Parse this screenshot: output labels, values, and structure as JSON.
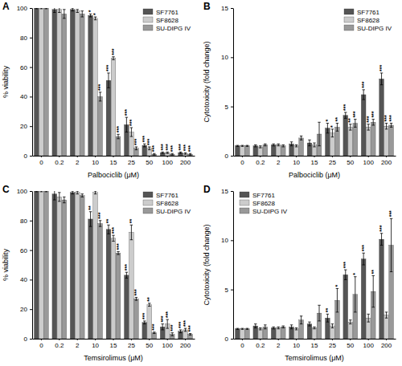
{
  "chart_data": [
    {
      "type": "bar",
      "title": "A",
      "x_label": "Palbociclib (μM)",
      "y_label": "% viability",
      "categories": [
        "0",
        "0.2",
        "2",
        "10",
        "15",
        "25",
        "50",
        "100",
        "200"
      ],
      "ylim": [
        0,
        100
      ],
      "yticks": [
        0,
        20,
        40,
        60,
        80,
        100
      ],
      "legend": "upper right",
      "series": [
        {
          "name": "SF7761",
          "color": "#555555",
          "values": [
            100,
            99,
            99,
            95,
            51,
            21,
            7,
            2,
            2
          ],
          "errors": [
            0.5,
            2,
            1,
            1,
            5,
            5,
            1,
            0.5,
            0.5
          ],
          "significance": [
            null,
            null,
            null,
            "*",
            "***",
            "***",
            "***",
            "***",
            "***"
          ]
        },
        {
          "name": "SF8628",
          "color": "#cccccc",
          "values": [
            100,
            99,
            98,
            93,
            66,
            16,
            5,
            2,
            1.5
          ],
          "errors": [
            0.5,
            2,
            1,
            1,
            1,
            3,
            1,
            0.5,
            0.5
          ],
          "significance": [
            null,
            null,
            null,
            "*",
            "***",
            "***",
            "***",
            "***",
            "***"
          ]
        },
        {
          "name": "SU-DIPG IV",
          "color": "#999999",
          "values": [
            100,
            96,
            96,
            40,
            13,
            5,
            1,
            1,
            1
          ],
          "errors": [
            0.5,
            3,
            2,
            3,
            1.5,
            1,
            0.5,
            0.5,
            0.5
          ],
          "significance": [
            null,
            null,
            null,
            "***",
            "***",
            "***",
            "***",
            "***",
            "***"
          ]
        }
      ]
    },
    {
      "type": "bar",
      "title": "B",
      "x_label": "Palbociclib (μM)",
      "y_label": "Cytotoxicity (fold change)",
      "categories": [
        "0",
        "0.2",
        "2",
        "10",
        "15",
        "25",
        "50",
        "100",
        "200"
      ],
      "ylim": [
        0,
        15
      ],
      "yticks": [
        0,
        5,
        10,
        15
      ],
      "legend": "upper right",
      "series": [
        {
          "name": "SF7761",
          "color": "#555555",
          "values": [
            1,
            1.0,
            1.1,
            1.2,
            1.3,
            2.8,
            4.1,
            6.2,
            7.8
          ],
          "errors": [
            0.05,
            0.1,
            0.1,
            0.2,
            0.3,
            0.5,
            0.3,
            0.5,
            0.6
          ],
          "significance": [
            null,
            null,
            null,
            null,
            null,
            "*",
            "***",
            "***",
            "***"
          ]
        },
        {
          "name": "SF8628",
          "color": "#cccccc",
          "values": [
            1,
            0.9,
            1.1,
            1.0,
            1.1,
            2.3,
            2.9,
            2.9,
            3.0
          ],
          "errors": [
            0.05,
            0.1,
            0.1,
            0.1,
            0.2,
            0.4,
            0.3,
            0.3,
            0.3
          ],
          "significance": [
            null,
            null,
            null,
            null,
            null,
            "*",
            "**",
            "***",
            "***"
          ]
        },
        {
          "name": "SU-DIPG IV",
          "color": "#999999",
          "values": [
            1,
            1.1,
            1.0,
            1.8,
            2.2,
            2.9,
            3.3,
            3.4,
            3.1
          ],
          "errors": [
            0.05,
            0.1,
            0.1,
            0.2,
            1.2,
            0.4,
            0.4,
            0.3,
            0.2
          ],
          "significance": [
            null,
            null,
            null,
            null,
            null,
            "**",
            "***",
            "***",
            "***"
          ]
        }
      ]
    },
    {
      "type": "bar",
      "title": "C",
      "x_label": "Temsirolimus (μM)",
      "y_label": "% viability",
      "categories": [
        "0",
        "0.2",
        "2",
        "10",
        "15",
        "25",
        "50",
        "100",
        "200"
      ],
      "ylim": [
        0,
        100
      ],
      "yticks": [
        0,
        20,
        40,
        60,
        80,
        100
      ],
      "legend": "upper right",
      "series": [
        {
          "name": "SF7761",
          "color": "#555555",
          "values": [
            100,
            98,
            99,
            81,
            74,
            43,
            11,
            8,
            5
          ],
          "errors": [
            0.5,
            4,
            1,
            5,
            3,
            2,
            1,
            2,
            1
          ],
          "significance": [
            null,
            null,
            null,
            "**",
            "**",
            "***",
            "***",
            "***",
            "***"
          ]
        },
        {
          "name": "SF8628",
          "color": "#cccccc",
          "values": [
            100,
            96,
            99,
            99,
            68,
            72,
            23,
            10,
            6
          ],
          "errors": [
            0.5,
            3,
            1,
            1,
            2,
            5,
            1,
            3,
            1
          ],
          "significance": [
            null,
            null,
            null,
            null,
            "***",
            "**",
            "**",
            "***",
            "***"
          ]
        },
        {
          "name": "SU-DIPG IV",
          "color": "#999999",
          "values": [
            100,
            94,
            97,
            78,
            58,
            27,
            4,
            3,
            3
          ],
          "errors": [
            0.5,
            2,
            1,
            2,
            1,
            1,
            0.5,
            1,
            0.5
          ],
          "significance": [
            null,
            null,
            null,
            "***",
            "***",
            "***",
            "***",
            "***",
            "***"
          ]
        }
      ]
    },
    {
      "type": "bar",
      "title": "D",
      "x_label": "Temsirolimus (μM)",
      "y_label": "Cytotoxicity (fold change)",
      "categories": [
        "0",
        "0.2",
        "2",
        "10",
        "15",
        "25",
        "50",
        "100",
        "200"
      ],
      "ylim": [
        0,
        15
      ],
      "yticks": [
        0,
        5,
        10,
        15
      ],
      "legend": "upper left",
      "series": [
        {
          "name": "SF7761",
          "color": "#555555",
          "values": [
            1,
            1.3,
            1.1,
            1.2,
            1.5,
            2.1,
            6.5,
            8.1,
            10.1
          ],
          "errors": [
            0.05,
            0.2,
            0.1,
            0.2,
            0.2,
            0.4,
            0.5,
            0.6,
            0.6
          ],
          "significance": [
            null,
            null,
            null,
            null,
            null,
            "**",
            "***",
            "***",
            "***"
          ]
        },
        {
          "name": "SF8628",
          "color": "#cccccc",
          "values": [
            1,
            1.0,
            1.1,
            1.0,
            1.1,
            1.3,
            1.7,
            2.1,
            2.4
          ],
          "errors": [
            0.05,
            0.1,
            0.1,
            0.1,
            0.1,
            0.2,
            0.2,
            0.4,
            0.3
          ],
          "significance": [
            null,
            null,
            null,
            null,
            null,
            null,
            null,
            null,
            null
          ]
        },
        {
          "name": "SU-DIPG IV",
          "color": "#999999",
          "values": [
            1,
            1.2,
            1.2,
            1.9,
            2.6,
            3.9,
            4.5,
            4.8,
            9.5
          ],
          "errors": [
            0.05,
            0.2,
            0.1,
            0.4,
            0.8,
            1.2,
            1.8,
            1.6,
            2.7
          ],
          "significance": [
            null,
            null,
            null,
            null,
            null,
            "*",
            "*",
            "**",
            "***"
          ]
        }
      ]
    }
  ]
}
